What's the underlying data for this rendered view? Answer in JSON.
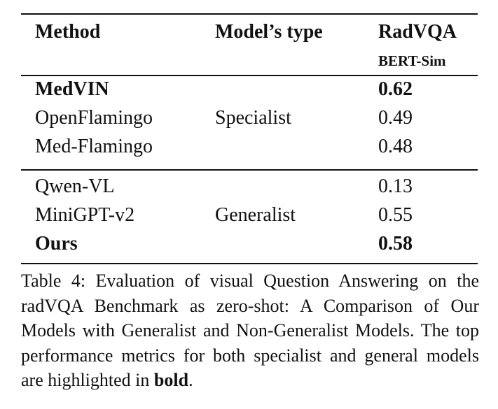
{
  "table": {
    "header": {
      "method": "Method",
      "type": "Model’s type",
      "dataset": "RadVQA",
      "metric": "BERT-Sim"
    },
    "groups": [
      {
        "type": "Specialist",
        "rows": [
          {
            "method": "MedVIN",
            "score": 0.62,
            "bold": true
          },
          {
            "method": "OpenFlamingo",
            "score": 0.49,
            "bold": false
          },
          {
            "method": "Med-Flamingo",
            "score": 0.48,
            "bold": false
          }
        ]
      },
      {
        "type": "Generalist",
        "rows": [
          {
            "method": "Qwen-VL",
            "score": 0.13,
            "bold": false
          },
          {
            "method": "MiniGPT-v2",
            "score": 0.55,
            "bold": false
          },
          {
            "method": "Ours",
            "score": 0.58,
            "bold": true
          }
        ]
      }
    ]
  },
  "caption": {
    "text": "Table 4: Evaluation of visual Question Answering on the radVQA Benchmark as zero-shot: A Comparison of Our Models with Generalist and Non-Generalist Models. The top performance metrics for both specialist and general models are highlighted in",
    "emphasis": "bold",
    "end": "."
  }
}
